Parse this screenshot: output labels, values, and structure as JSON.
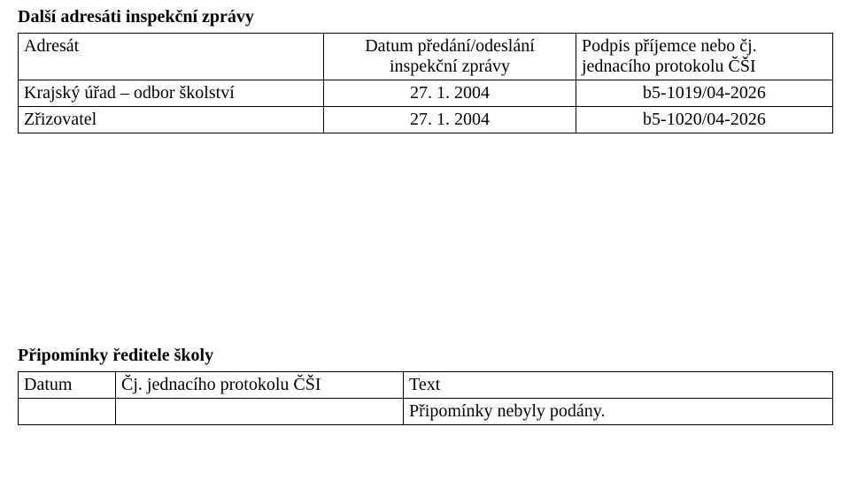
{
  "section1": {
    "title": "Další adresáti inspekční zprávy",
    "title_fontsize": 20,
    "header": {
      "col1": "Adresát",
      "col2_line1": "Datum předání/odeslání",
      "col2_line2": "inspekční zprávy",
      "col3_line1": "Podpis příjemce nebo čj.",
      "col3_line2": "jednacího protokolu ČŠI"
    },
    "rows": [
      {
        "recipient": "Krajský úřad – odbor školství",
        "date": "27. 1. 2004",
        "ref": "b5-1019/04-2026"
      },
      {
        "recipient": "Zřizovatel",
        "date": "27. 1. 2004",
        "ref": "b5-1020/04-2026"
      }
    ]
  },
  "section2": {
    "title": "Připomínky ředitele školy",
    "title_fontsize": 20,
    "header": {
      "col1": "Datum",
      "col2": "Čj. jednacího protokolu ČŠI",
      "col3": "Text"
    },
    "row": {
      "date": "",
      "ref": "",
      "text": "Připomínky nebyly podány."
    }
  },
  "style": {
    "body_fontsize": 20,
    "text_color": "#000000",
    "background_color": "#ffffff",
    "border_color": "#000000"
  }
}
